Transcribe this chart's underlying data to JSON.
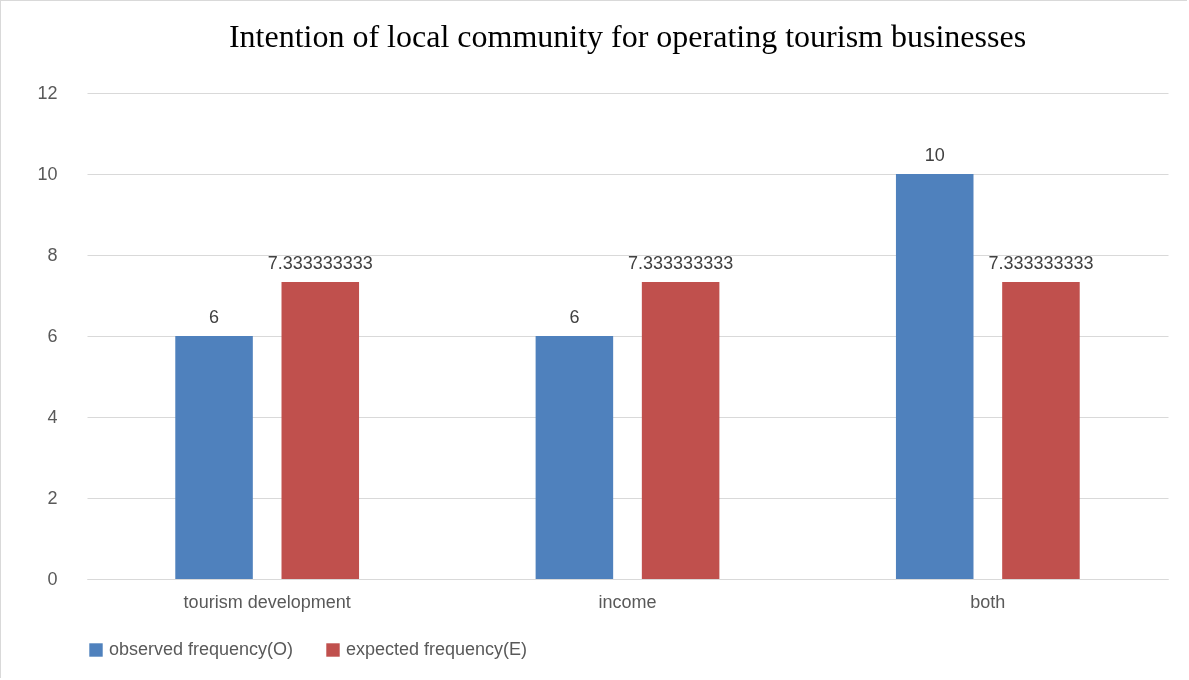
{
  "chart_data": {
    "type": "bar",
    "title": "Intention of local community for operating tourism businesses",
    "categories": [
      "tourism development",
      "income",
      "both"
    ],
    "series": [
      {
        "name": "observed frequency(O)",
        "color": "#4f81bd",
        "values": [
          6,
          6,
          10
        ]
      },
      {
        "name": "expected frequency(E)",
        "color": "#c0504d",
        "values": [
          7.333333333,
          7.333333333,
          7.333333333
        ]
      }
    ],
    "ylim": [
      0,
      12
    ],
    "yticks": [
      0,
      2,
      4,
      6,
      8,
      10,
      12
    ],
    "grid": "y",
    "legend": "bottom",
    "data_labels": true
  }
}
